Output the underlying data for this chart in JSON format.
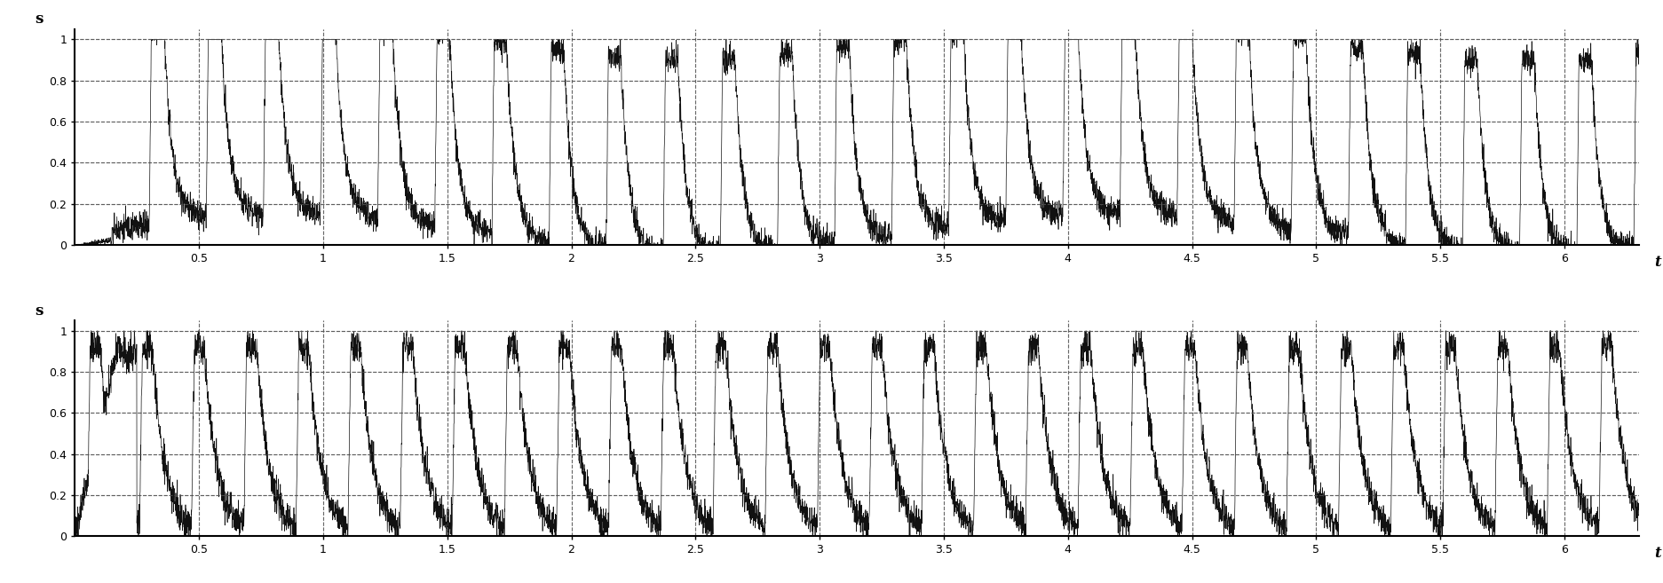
{
  "title": "",
  "xlabel": "t",
  "ylabel_top": "s",
  "ylabel_bottom": "s",
  "xlim": [
    0,
    6.3
  ],
  "ylim": [
    0,
    1.05
  ],
  "xticks": [
    0.5,
    1.0,
    1.5,
    2.0,
    2.5,
    3.0,
    3.5,
    4.0,
    4.5,
    5.0,
    5.5,
    6.0
  ],
  "yticks": [
    0,
    0.2,
    0.4,
    0.6,
    0.8,
    1
  ],
  "grid_color": "#555555",
  "line_color": "#111111",
  "background_color": "#ffffff",
  "fig_width": 18.74,
  "fig_height": 6.57,
  "dpi": 100
}
